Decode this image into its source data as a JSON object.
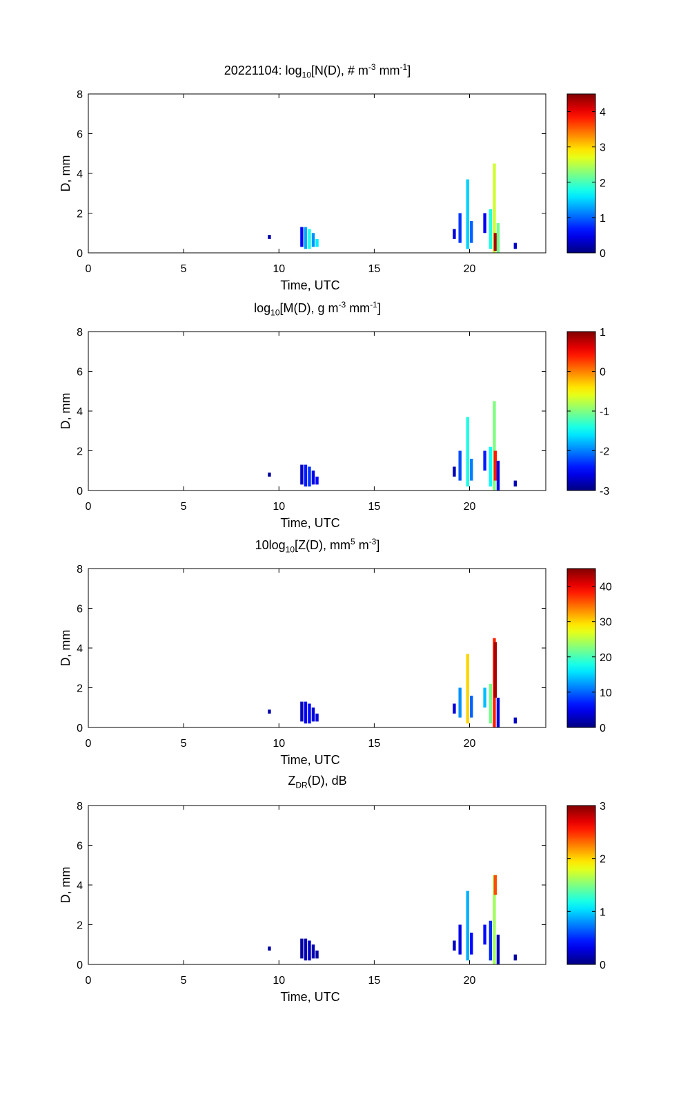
{
  "chart_data": [
    {
      "type": "heatmap",
      "title": {
        "prefix": "20221104: log",
        "sub": "10",
        "body": "[N(D), # m",
        "sup1": "-3",
        "mid": " mm",
        "sup2": "-1",
        "end": "]"
      },
      "xlabel": "Time, UTC",
      "ylabel": "D, mm",
      "xlim": [
        0,
        24
      ],
      "ylim": [
        0,
        8
      ],
      "xticks": [
        0,
        5,
        10,
        15,
        20
      ],
      "yticks": [
        0,
        2,
        4,
        6,
        8
      ],
      "colorbar": {
        "min": 0,
        "max": 4.5,
        "ticks": [
          0,
          1,
          2,
          3,
          4
        ],
        "tick_labels": [
          "0",
          "1",
          "2",
          "3",
          "4"
        ]
      },
      "cells": [
        {
          "t": 9.5,
          "d0": 0.7,
          "d1": 0.9,
          "v": 0.2
        },
        {
          "t": 11.2,
          "d0": 0.3,
          "d1": 1.3,
          "v": 0.6
        },
        {
          "t": 11.4,
          "d0": 0.2,
          "d1": 1.3,
          "v": 1.3
        },
        {
          "t": 11.6,
          "d0": 0.2,
          "d1": 1.2,
          "v": 1.8
        },
        {
          "t": 11.8,
          "d0": 0.3,
          "d1": 1.0,
          "v": 1.2
        },
        {
          "t": 12.0,
          "d0": 0.3,
          "d1": 0.7,
          "v": 1.6
        },
        {
          "t": 19.2,
          "d0": 0.7,
          "d1": 1.2,
          "v": 0.4
        },
        {
          "t": 19.5,
          "d0": 0.5,
          "d1": 2.0,
          "v": 0.8
        },
        {
          "t": 19.9,
          "d0": 0.2,
          "d1": 3.7,
          "v": 1.5
        },
        {
          "t": 20.1,
          "d0": 0.5,
          "d1": 1.6,
          "v": 1.0
        },
        {
          "t": 20.8,
          "d0": 1.0,
          "d1": 2.0,
          "v": 0.5
        },
        {
          "t": 21.1,
          "d0": 0.2,
          "d1": 2.2,
          "v": 1.8
        },
        {
          "t": 21.3,
          "d0": 0.0,
          "d1": 4.5,
          "v": 2.6
        },
        {
          "t": 21.35,
          "d0": 0.1,
          "d1": 1.0,
          "v": 4.3
        },
        {
          "t": 21.5,
          "d0": 0.0,
          "d1": 1.5,
          "v": 2.2
        },
        {
          "t": 22.4,
          "d0": 0.2,
          "d1": 0.5,
          "v": 0.3
        }
      ]
    },
    {
      "type": "heatmap",
      "title": {
        "prefix": "log",
        "sub": "10",
        "body": "[M(D), g m",
        "sup1": "-3",
        "mid": " mm",
        "sup2": "-1",
        "end": "]"
      },
      "xlabel": "Time, UTC",
      "ylabel": "D, mm",
      "xlim": [
        0,
        24
      ],
      "ylim": [
        0,
        8
      ],
      "xticks": [
        0,
        5,
        10,
        15,
        20
      ],
      "yticks": [
        0,
        2,
        4,
        6,
        8
      ],
      "colorbar": {
        "min": -3,
        "max": 1,
        "ticks": [
          -3,
          -2,
          -1,
          0,
          1
        ],
        "tick_labels": [
          "-3",
          "-2",
          "-1",
          "0",
          "1"
        ]
      },
      "cells": [
        {
          "t": 9.5,
          "d0": 0.7,
          "d1": 0.9,
          "v": -2.9
        },
        {
          "t": 11.2,
          "d0": 0.3,
          "d1": 1.3,
          "v": -2.7
        },
        {
          "t": 11.4,
          "d0": 0.2,
          "d1": 1.3,
          "v": -2.4
        },
        {
          "t": 11.6,
          "d0": 0.2,
          "d1": 1.2,
          "v": -2.3
        },
        {
          "t": 11.8,
          "d0": 0.3,
          "d1": 1.0,
          "v": -2.6
        },
        {
          "t": 12.0,
          "d0": 0.3,
          "d1": 0.7,
          "v": -2.5
        },
        {
          "t": 19.2,
          "d0": 0.7,
          "d1": 1.2,
          "v": -2.8
        },
        {
          "t": 19.5,
          "d0": 0.5,
          "d1": 2.0,
          "v": -2.2
        },
        {
          "t": 19.9,
          "d0": 0.2,
          "d1": 3.7,
          "v": -1.4
        },
        {
          "t": 20.1,
          "d0": 0.5,
          "d1": 1.6,
          "v": -2.0
        },
        {
          "t": 20.8,
          "d0": 1.0,
          "d1": 2.0,
          "v": -2.4
        },
        {
          "t": 21.1,
          "d0": 0.2,
          "d1": 2.2,
          "v": -1.5
        },
        {
          "t": 21.3,
          "d0": 0.0,
          "d1": 4.5,
          "v": -1.0
        },
        {
          "t": 21.35,
          "d0": 0.5,
          "d1": 2.0,
          "v": 0.4
        },
        {
          "t": 21.5,
          "d0": 0.0,
          "d1": 1.5,
          "v": -2.6
        },
        {
          "t": 22.4,
          "d0": 0.2,
          "d1": 0.5,
          "v": -2.8
        }
      ]
    },
    {
      "type": "heatmap",
      "title": {
        "prefix": "10log",
        "sub": "10",
        "body": "[Z(D),  mm",
        "sup1": "5",
        "mid": " m",
        "sup2": "-3",
        "end": "]"
      },
      "xlabel": "Time, UTC",
      "ylabel": "D, mm",
      "xlim": [
        0,
        24
      ],
      "ylim": [
        0,
        8
      ],
      "xticks": [
        0,
        5,
        10,
        15,
        20
      ],
      "yticks": [
        0,
        2,
        4,
        6,
        8
      ],
      "colorbar": {
        "min": 0,
        "max": 45,
        "ticks": [
          0,
          10,
          20,
          30,
          40
        ],
        "tick_labels": [
          "0",
          "10",
          "20",
          "30",
          "40"
        ]
      },
      "cells": [
        {
          "t": 9.5,
          "d0": 0.7,
          "d1": 0.9,
          "v": 2
        },
        {
          "t": 11.2,
          "d0": 0.3,
          "d1": 1.3,
          "v": 3
        },
        {
          "t": 11.4,
          "d0": 0.2,
          "d1": 1.3,
          "v": 5
        },
        {
          "t": 11.6,
          "d0": 0.2,
          "d1": 1.2,
          "v": 6
        },
        {
          "t": 11.8,
          "d0": 0.3,
          "d1": 1.0,
          "v": 4
        },
        {
          "t": 12.0,
          "d0": 0.3,
          "d1": 0.7,
          "v": 4
        },
        {
          "t": 19.2,
          "d0": 0.7,
          "d1": 1.2,
          "v": 4
        },
        {
          "t": 19.5,
          "d0": 0.5,
          "d1": 2.0,
          "v": 12
        },
        {
          "t": 19.9,
          "d0": 0.2,
          "d1": 3.7,
          "v": 30
        },
        {
          "t": 20.1,
          "d0": 0.5,
          "d1": 1.6,
          "v": 10
        },
        {
          "t": 20.8,
          "d0": 1.0,
          "d1": 2.0,
          "v": 14
        },
        {
          "t": 21.1,
          "d0": 0.2,
          "d1": 2.2,
          "v": 22
        },
        {
          "t": 21.3,
          "d0": 0.0,
          "d1": 4.5,
          "v": 38
        },
        {
          "t": 21.35,
          "d0": 1.5,
          "d1": 4.3,
          "v": 43
        },
        {
          "t": 21.5,
          "d0": 0.0,
          "d1": 1.5,
          "v": 4
        },
        {
          "t": 22.4,
          "d0": 0.2,
          "d1": 0.5,
          "v": 3
        }
      ]
    },
    {
      "type": "heatmap",
      "title": {
        "prefix": "Z",
        "sub": "DR",
        "body": "(D), dB",
        "sup1": "",
        "mid": "",
        "sup2": "",
        "end": ""
      },
      "xlabel": "Time, UTC",
      "ylabel": "D, mm",
      "xlim": [
        0,
        24
      ],
      "ylim": [
        0,
        8
      ],
      "xticks": [
        0,
        5,
        10,
        15,
        20
      ],
      "yticks": [
        0,
        2,
        4,
        6,
        8
      ],
      "colorbar": {
        "min": 0,
        "max": 3,
        "ticks": [
          0,
          1,
          2,
          3
        ],
        "tick_labels": [
          "0",
          "1",
          "2",
          "3"
        ]
      },
      "cells": [
        {
          "t": 9.5,
          "d0": 0.7,
          "d1": 0.9,
          "v": 0.1
        },
        {
          "t": 11.2,
          "d0": 0.3,
          "d1": 1.3,
          "v": 0.1
        },
        {
          "t": 11.4,
          "d0": 0.2,
          "d1": 1.3,
          "v": 0.15
        },
        {
          "t": 11.6,
          "d0": 0.2,
          "d1": 1.2,
          "v": 0.2
        },
        {
          "t": 11.8,
          "d0": 0.3,
          "d1": 1.0,
          "v": 0.15
        },
        {
          "t": 12.0,
          "d0": 0.3,
          "d1": 0.7,
          "v": 0.1
        },
        {
          "t": 19.2,
          "d0": 0.7,
          "d1": 1.2,
          "v": 0.2
        },
        {
          "t": 19.5,
          "d0": 0.5,
          "d1": 2.0,
          "v": 0.3
        },
        {
          "t": 19.9,
          "d0": 0.2,
          "d1": 3.7,
          "v": 0.9
        },
        {
          "t": 20.1,
          "d0": 0.5,
          "d1": 1.6,
          "v": 0.4
        },
        {
          "t": 20.8,
          "d0": 1.0,
          "d1": 2.0,
          "v": 0.4
        },
        {
          "t": 21.1,
          "d0": 0.2,
          "d1": 2.2,
          "v": 0.5
        },
        {
          "t": 21.3,
          "d0": 0.0,
          "d1": 4.5,
          "v": 1.6
        },
        {
          "t": 21.35,
          "d0": 3.5,
          "d1": 4.5,
          "v": 2.4
        },
        {
          "t": 21.5,
          "d0": 0.0,
          "d1": 1.5,
          "v": 0.15
        },
        {
          "t": 22.4,
          "d0": 0.2,
          "d1": 0.5,
          "v": 0.1
        }
      ]
    }
  ]
}
